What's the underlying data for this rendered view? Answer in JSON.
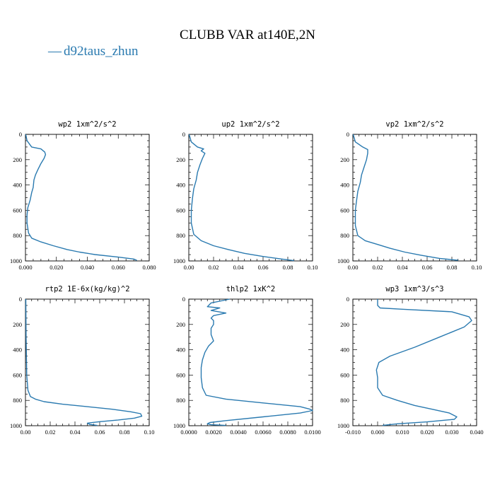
{
  "figure": {
    "title": "CLUBB VAR at140E,2N",
    "legend": {
      "symbol": "—",
      "label": "d92taus_zhun",
      "color": "#2a7ab0"
    }
  },
  "chart_data": [
    {
      "type": "line",
      "title": "wp2   1xm^2/s^2",
      "xlim": [
        0,
        0.08
      ],
      "xticks": [
        "0.000",
        "0.020",
        "0.040",
        "0.060",
        "0.080"
      ],
      "ylim": [
        0,
        1000
      ],
      "yticks": [
        "0",
        "200",
        "400",
        "600",
        "800",
        "1000"
      ],
      "y_inverted": true,
      "series": [
        {
          "x": [
            0.0002,
            0.001,
            0.004,
            0.01,
            0.0125,
            0.013,
            0.012,
            0.01,
            0.008,
            0.0065,
            0.0055,
            0.005,
            0.004,
            0.003,
            0.0015,
            0.001,
            0.001,
            0.002,
            0.004,
            0.01,
            0.018,
            0.027,
            0.035,
            0.045,
            0.06,
            0.07,
            0.072
          ],
          "y": [
            0,
            50,
            100,
            115,
            140,
            160,
            190,
            230,
            280,
            320,
            360,
            420,
            460,
            520,
            580,
            640,
            700,
            780,
            820,
            850,
            880,
            910,
            930,
            950,
            970,
            985,
            995
          ]
        }
      ]
    },
    {
      "type": "line",
      "title": "up2   1xm^2/s^2",
      "xlim": [
        0,
        0.1
      ],
      "xticks": [
        "0.00",
        "0.02",
        "0.04",
        "0.06",
        "0.08",
        "0.10"
      ],
      "ylim": [
        0,
        1000
      ],
      "yticks": [
        "0",
        "200",
        "400",
        "600",
        "800",
        "1000"
      ],
      "y_inverted": true,
      "series": [
        {
          "x": [
            0.0002,
            0.002,
            0.007,
            0.012,
            0.01,
            0.013,
            0.011,
            0.009,
            0.007,
            0.006,
            0.004,
            0.003,
            0.002,
            0.002,
            0.004,
            0.01,
            0.02,
            0.032,
            0.045,
            0.06,
            0.075,
            0.085
          ],
          "y": [
            0,
            60,
            100,
            115,
            130,
            150,
            190,
            240,
            300,
            360,
            430,
            500,
            600,
            700,
            790,
            840,
            880,
            910,
            940,
            965,
            985,
            998
          ]
        }
      ]
    },
    {
      "type": "line",
      "title": "vp2   1xm^2/s^2",
      "xlim": [
        0,
        0.1
      ],
      "xticks": [
        "0.00",
        "0.02",
        "0.04",
        "0.06",
        "0.08",
        "0.10"
      ],
      "ylim": [
        0,
        1000
      ],
      "yticks": [
        "0",
        "200",
        "400",
        "600",
        "800",
        "1000"
      ],
      "y_inverted": true,
      "series": [
        {
          "x": [
            0.0002,
            0.002,
            0.008,
            0.012,
            0.012,
            0.011,
            0.009,
            0.007,
            0.006,
            0.004,
            0.003,
            0.002,
            0.002,
            0.004,
            0.01,
            0.02,
            0.03,
            0.042,
            0.055,
            0.07,
            0.085
          ],
          "y": [
            0,
            60,
            100,
            120,
            150,
            200,
            260,
            320,
            380,
            450,
            520,
            600,
            720,
            800,
            840,
            870,
            900,
            930,
            955,
            980,
            995
          ]
        }
      ]
    },
    {
      "type": "line",
      "title": "rtp2   1E-6x(kg/kg)^2",
      "xlim": [
        0,
        0.1
      ],
      "xticks": [
        "0.00",
        "0.02",
        "0.04",
        "0.06",
        "0.08",
        "0.10"
      ],
      "ylim": [
        0,
        1000
      ],
      "yticks": [
        "0",
        "200",
        "400",
        "600",
        "800",
        "1000"
      ],
      "y_inverted": true,
      "series": [
        {
          "x": [
            0.0003,
            0.0005,
            0.001,
            0.002,
            0.004,
            0.008,
            0.015,
            0.03,
            0.05,
            0.07,
            0.085,
            0.093,
            0.094,
            0.088,
            0.075,
            0.06,
            0.05,
            0.052,
            0.058
          ],
          "y": [
            0,
            300,
            600,
            720,
            770,
            790,
            810,
            830,
            850,
            870,
            890,
            905,
            925,
            940,
            955,
            968,
            980,
            990,
            998
          ]
        }
      ]
    },
    {
      "type": "line",
      "title": "thlp2   1xK^2",
      "xlim": [
        0,
        0.01
      ],
      "xticks": [
        "0.0000",
        "0.0020",
        "0.0040",
        "0.0060",
        "0.0080",
        "0.0100"
      ],
      "ylim": [
        0,
        1000
      ],
      "yticks": [
        "0",
        "200",
        "400",
        "600",
        "800",
        "1000"
      ],
      "y_inverted": true,
      "series": [
        {
          "x": [
            0.0033,
            0.0018,
            0.0015,
            0.0025,
            0.0018,
            0.003,
            0.002,
            0.0018,
            0.002,
            0.002,
            0.0018,
            0.0018,
            0.002,
            0.0016,
            0.0013,
            0.0011,
            0.001,
            0.001,
            0.0011,
            0.0014,
            0.003,
            0.006,
            0.009,
            0.0098,
            0.01,
            0.009,
            0.006,
            0.003,
            0.0017,
            0.0015,
            0.0018,
            0.003
          ],
          "y": [
            0,
            30,
            60,
            70,
            90,
            110,
            130,
            150,
            170,
            200,
            230,
            280,
            330,
            370,
            420,
            480,
            540,
            620,
            700,
            760,
            790,
            820,
            850,
            870,
            880,
            900,
            930,
            960,
            975,
            985,
            992,
            998
          ]
        }
      ]
    },
    {
      "type": "line",
      "title": "wp3   1xm^3/s^3",
      "xlim": [
        -0.01,
        0.04
      ],
      "xticks": [
        "-0.010",
        "0.000",
        "0.010",
        "0.020",
        "0.030",
        "0.040"
      ],
      "ylim": [
        0,
        1000
      ],
      "yticks": [
        "0",
        "200",
        "400",
        "600",
        "800",
        "1000"
      ],
      "y_inverted": true,
      "series": [
        {
          "x": [
            0.0,
            0.0,
            0.001,
            0.01,
            0.03,
            0.037,
            0.038,
            0.035,
            0.025,
            0.015,
            0.005,
            0.0005,
            -0.0005,
            0.0,
            0.0,
            0.002,
            0.008,
            0.015,
            0.022,
            0.029,
            0.032,
            0.031,
            0.02,
            0.008,
            0.002
          ],
          "y": [
            0,
            50,
            70,
            80,
            100,
            140,
            170,
            220,
            300,
            380,
            450,
            500,
            560,
            620,
            700,
            760,
            800,
            840,
            870,
            900,
            930,
            950,
            970,
            985,
            998
          ]
        }
      ]
    }
  ]
}
